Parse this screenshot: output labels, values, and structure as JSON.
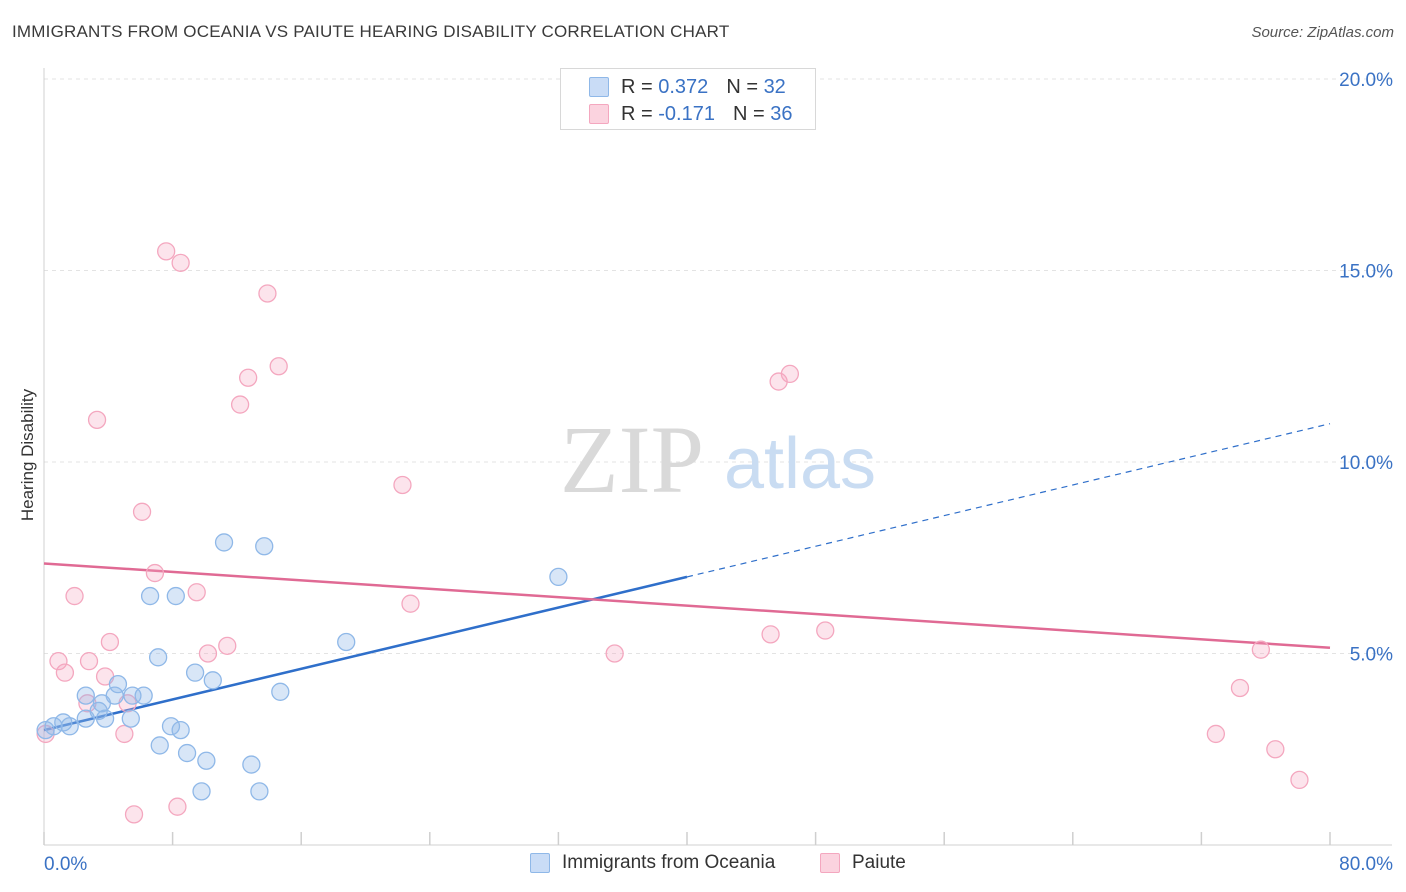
{
  "chart_data": {
    "type": "scatter",
    "title": "IMMIGRANTS FROM OCEANIA VS PAIUTE HEARING DISABILITY CORRELATION CHART",
    "source": "Source: ZipAtlas.com",
    "ylabel": "Hearing Disability",
    "xlabel": "",
    "xlim": [
      0,
      80
    ],
    "ylim": [
      0,
      20
    ],
    "x_tick_labels": [
      "0.0%",
      "80.0%"
    ],
    "y_ticks": [
      5,
      10,
      15,
      20
    ],
    "y_tick_labels": [
      "5.0%",
      "10.0%",
      "15.0%",
      "20.0%"
    ],
    "watermark": {
      "zip": "ZIP",
      "atlas": "atlas"
    },
    "legend_stats": [
      {
        "r_label": "R = ",
        "r_value": "0.372",
        "n_label": "N = ",
        "n_value": "32"
      },
      {
        "r_label": "R = ",
        "r_value": "-0.171",
        "n_label": "N = ",
        "n_value": "36"
      }
    ],
    "series": [
      {
        "name": "Immigrants from Oceania",
        "color": "#8fb8e8",
        "line_color": "#2f6fca",
        "trend": {
          "x_start": 0,
          "y_start": 3.0,
          "x_solid_end": 40,
          "y_solid_end": 7.0,
          "x_end": 80,
          "y_end": 11.0
        },
        "points": [
          [
            0.1,
            3.0
          ],
          [
            0.6,
            3.1
          ],
          [
            1.2,
            3.2
          ],
          [
            1.6,
            3.1
          ],
          [
            2.6,
            3.3
          ],
          [
            2.6,
            3.9
          ],
          [
            3.4,
            3.5
          ],
          [
            3.6,
            3.7
          ],
          [
            3.8,
            3.3
          ],
          [
            4.4,
            3.9
          ],
          [
            4.6,
            4.2
          ],
          [
            5.4,
            3.3
          ],
          [
            5.5,
            3.9
          ],
          [
            6.2,
            3.9
          ],
          [
            6.6,
            6.5
          ],
          [
            7.1,
            4.9
          ],
          [
            7.2,
            2.6
          ],
          [
            7.9,
            3.1
          ],
          [
            8.2,
            6.5
          ],
          [
            8.5,
            3.0
          ],
          [
            8.9,
            2.4
          ],
          [
            9.4,
            4.5
          ],
          [
            9.8,
            1.4
          ],
          [
            10.1,
            2.2
          ],
          [
            10.5,
            4.3
          ],
          [
            11.2,
            7.9
          ],
          [
            12.9,
            2.1
          ],
          [
            13.4,
            1.4
          ],
          [
            13.7,
            7.8
          ],
          [
            14.7,
            4.0
          ],
          [
            18.8,
            5.3
          ],
          [
            32.0,
            7.0
          ]
        ]
      },
      {
        "name": "Paiute",
        "color": "#f4a7bf",
        "line_color": "#e06a94",
        "trend": {
          "x_start": 0,
          "y_start": 7.35,
          "x_end": 80,
          "y_end": 5.15
        },
        "points": [
          [
            0.1,
            2.9
          ],
          [
            0.9,
            4.8
          ],
          [
            1.3,
            4.5
          ],
          [
            1.9,
            6.5
          ],
          [
            2.7,
            3.7
          ],
          [
            2.8,
            4.8
          ],
          [
            3.3,
            11.1
          ],
          [
            3.8,
            4.4
          ],
          [
            4.1,
            5.3
          ],
          [
            5.0,
            2.9
          ],
          [
            5.2,
            3.7
          ],
          [
            5.6,
            0.8
          ],
          [
            6.1,
            8.7
          ],
          [
            6.9,
            7.1
          ],
          [
            7.6,
            15.5
          ],
          [
            8.3,
            1.0
          ],
          [
            8.5,
            15.2
          ],
          [
            9.5,
            6.6
          ],
          [
            10.2,
            5.0
          ],
          [
            11.4,
            5.2
          ],
          [
            12.2,
            11.5
          ],
          [
            12.7,
            12.2
          ],
          [
            13.9,
            14.4
          ],
          [
            14.6,
            12.5
          ],
          [
            22.3,
            9.4
          ],
          [
            22.8,
            6.3
          ],
          [
            35.5,
            5.0
          ],
          [
            45.2,
            5.5
          ],
          [
            45.7,
            12.1
          ],
          [
            46.4,
            12.3
          ],
          [
            48.6,
            5.6
          ],
          [
            72.9,
            2.9
          ],
          [
            74.4,
            4.1
          ],
          [
            75.7,
            5.1
          ],
          [
            76.6,
            2.5
          ],
          [
            78.1,
            1.7
          ]
        ]
      }
    ]
  }
}
